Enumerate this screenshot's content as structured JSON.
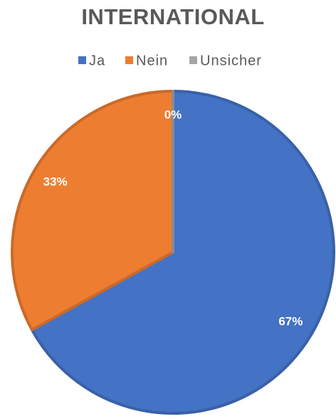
{
  "chart_data": {
    "type": "pie",
    "title": "INTERNATIONAL",
    "categories": [
      "Ja",
      "Nein",
      "Unsicher"
    ],
    "values": [
      67,
      33,
      0
    ],
    "value_labels": [
      "67%",
      "33%",
      "0%"
    ],
    "colors": [
      "#4472c4",
      "#ed7d31",
      "#a5a5a5"
    ],
    "legend": "top"
  }
}
